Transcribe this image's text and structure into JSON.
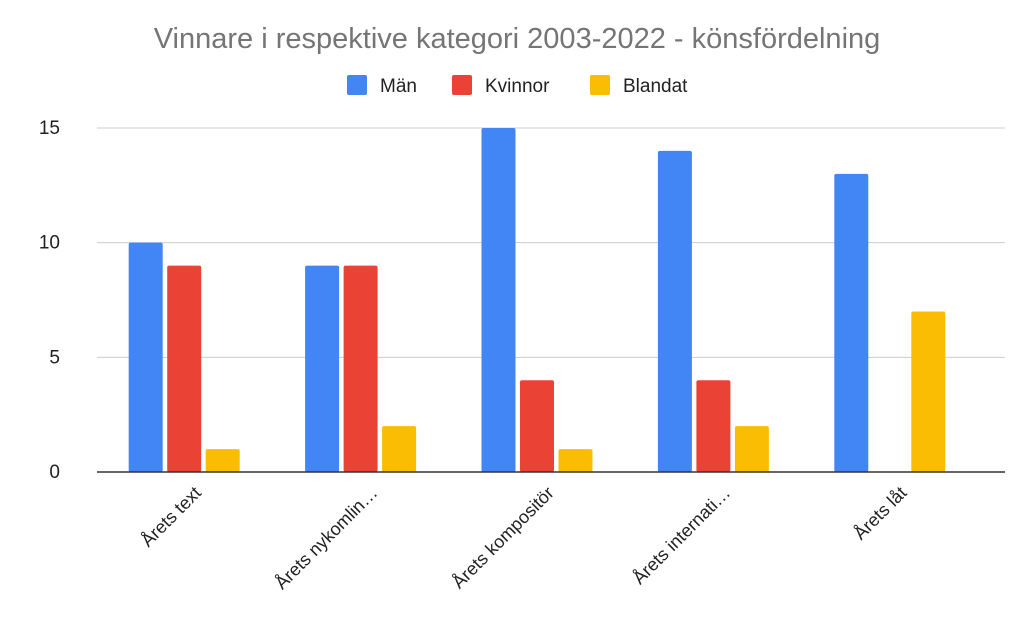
{
  "chart_data": {
    "type": "bar",
    "title": "Vinnare i respektive kategori 2003-2022 - könsfördelning",
    "categories": [
      "Årets text",
      "Årets nykomlin…",
      "Årets kompositör",
      "Årets internati…",
      "Årets låt"
    ],
    "series": [
      {
        "name": "Män",
        "color": "#4285f4",
        "values": [
          10,
          9,
          15,
          14,
          13
        ]
      },
      {
        "name": "Kvinnor",
        "color": "#ea4335",
        "values": [
          9,
          9,
          4,
          4,
          0
        ]
      },
      {
        "name": "Blandat",
        "color": "#fbbc04",
        "values": [
          1,
          2,
          1,
          2,
          7
        ]
      }
    ],
    "ylim": [
      0,
      15
    ],
    "yticks": [
      0,
      5,
      10,
      15
    ],
    "grid": true,
    "legend_position": "top"
  }
}
